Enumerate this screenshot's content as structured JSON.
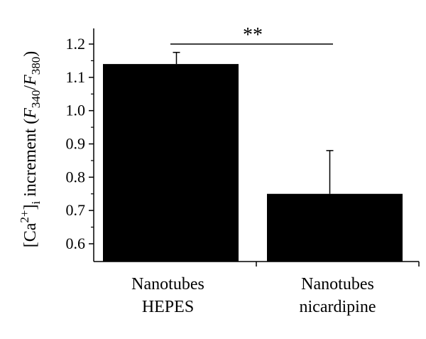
{
  "chart_data": {
    "type": "bar",
    "categories": [
      [
        "Nanotubes",
        "HEPES"
      ],
      [
        "Nanotubes",
        "nicardipine"
      ]
    ],
    "values": [
      1.14,
      0.75
    ],
    "error_upper": [
      0.035,
      0.13
    ],
    "ylabel": {
      "prefix": "[Ca",
      "sup": "2+",
      "after_sup": "]",
      "sub_i": "i",
      "middle": " increment (",
      "F1": "F",
      "F1_sub": "340",
      "slash": "/",
      "F2": "F",
      "F2_sub": "380",
      "suffix": ")"
    },
    "yticks": [
      "0.6",
      "0.7",
      "0.8",
      "0.9",
      "1.0",
      "1.1",
      "1.2"
    ],
    "ylim": [
      0.55,
      1.25
    ],
    "significance": "**",
    "bar_color": "#000000",
    "grid": false,
    "legend": "none"
  }
}
